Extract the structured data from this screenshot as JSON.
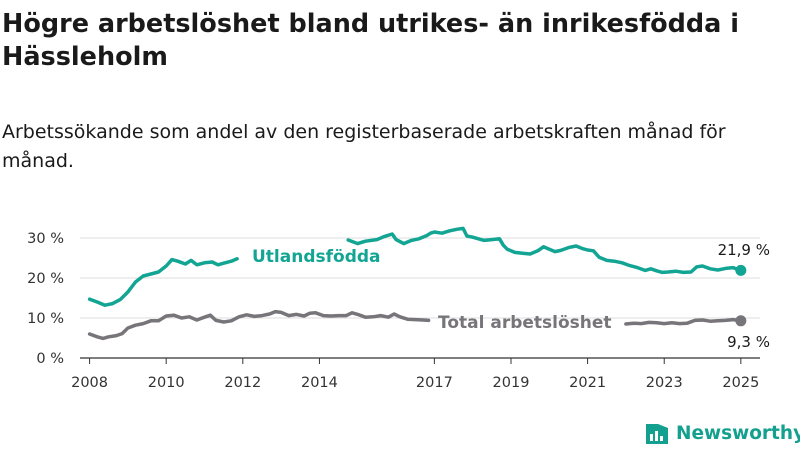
{
  "title": "Högre arbetslöshet bland utrikes- än inrikesfödda i Hässleholm",
  "subtitle": "Arbetssökande som andel av den registerbaserade arbetskraften månad för månad.",
  "brand": {
    "name": "Newsworthy",
    "color": "#14a08f"
  },
  "colors": {
    "grid": "#dddddd",
    "axis": "#333333"
  },
  "chart_data": {
    "type": "line",
    "xlim": [
      2007.75,
      2025.5
    ],
    "ylim": [
      0,
      30
    ],
    "x_ticks": [
      2008,
      2010,
      2012,
      2014,
      2017,
      2019,
      2021,
      2023,
      2025
    ],
    "x_tick_labels": [
      "2008",
      "2010",
      "2012",
      "2014",
      "2017",
      "2019",
      "2021",
      "2023",
      "2025"
    ],
    "y_ticks": [
      0,
      10,
      20,
      30
    ],
    "y_tick_labels": [
      "0 %",
      "10 %",
      "20 %",
      "30 %"
    ],
    "grid": "horizontal",
    "series": [
      {
        "name": "Utlandsfödda",
        "color": "#13a594",
        "end_label": "21,9 %",
        "points": [
          [
            2008.0,
            14.7
          ],
          [
            2008.2,
            14.0
          ],
          [
            2008.4,
            13.2
          ],
          [
            2008.6,
            13.6
          ],
          [
            2008.8,
            14.6
          ],
          [
            2009.0,
            16.5
          ],
          [
            2009.2,
            19.0
          ],
          [
            2009.4,
            20.5
          ],
          [
            2009.6,
            21.0
          ],
          [
            2009.8,
            21.5
          ],
          [
            2010.0,
            23.0
          ],
          [
            2010.15,
            24.6
          ],
          [
            2010.3,
            24.2
          ],
          [
            2010.5,
            23.5
          ],
          [
            2010.65,
            24.4
          ],
          [
            2010.8,
            23.3
          ],
          [
            2011.0,
            23.8
          ],
          [
            2011.2,
            24.0
          ],
          [
            2011.35,
            23.3
          ],
          [
            2011.5,
            23.7
          ],
          [
            2011.7,
            24.2
          ],
          [
            2011.85,
            24.8
          ],
          [
            2014.75,
            29.5
          ],
          [
            2015.0,
            28.6
          ],
          [
            2015.2,
            29.2
          ],
          [
            2015.5,
            29.6
          ],
          [
            2015.7,
            30.4
          ],
          [
            2015.9,
            31.0
          ],
          [
            2016.0,
            29.6
          ],
          [
            2016.2,
            28.6
          ],
          [
            2016.4,
            29.4
          ],
          [
            2016.6,
            29.8
          ],
          [
            2016.8,
            30.6
          ],
          [
            2016.9,
            31.2
          ],
          [
            2017.0,
            31.5
          ],
          [
            2017.2,
            31.2
          ],
          [
            2017.4,
            31.8
          ],
          [
            2017.6,
            32.2
          ],
          [
            2017.75,
            32.4
          ],
          [
            2017.85,
            30.5
          ],
          [
            2018.0,
            30.2
          ],
          [
            2018.15,
            29.8
          ],
          [
            2018.3,
            29.4
          ],
          [
            2018.5,
            29.6
          ],
          [
            2018.7,
            29.8
          ],
          [
            2018.8,
            28.2
          ],
          [
            2018.9,
            27.2
          ],
          [
            2019.1,
            26.4
          ],
          [
            2019.3,
            26.2
          ],
          [
            2019.5,
            26.0
          ],
          [
            2019.7,
            26.8
          ],
          [
            2019.85,
            27.8
          ],
          [
            2020.0,
            27.2
          ],
          [
            2020.15,
            26.6
          ],
          [
            2020.3,
            26.9
          ],
          [
            2020.5,
            27.6
          ],
          [
            2020.7,
            28.0
          ],
          [
            2020.85,
            27.4
          ],
          [
            2021.0,
            27.0
          ],
          [
            2021.15,
            26.8
          ],
          [
            2021.3,
            25.2
          ],
          [
            2021.5,
            24.4
          ],
          [
            2021.7,
            24.2
          ],
          [
            2021.9,
            23.8
          ],
          [
            2022.1,
            23.1
          ],
          [
            2022.3,
            22.6
          ],
          [
            2022.5,
            21.9
          ],
          [
            2022.65,
            22.3
          ],
          [
            2022.8,
            21.8
          ],
          [
            2022.95,
            21.4
          ],
          [
            2023.1,
            21.5
          ],
          [
            2023.3,
            21.7
          ],
          [
            2023.5,
            21.4
          ],
          [
            2023.7,
            21.5
          ],
          [
            2023.85,
            22.8
          ],
          [
            2024.0,
            23.0
          ],
          [
            2024.2,
            22.3
          ],
          [
            2024.4,
            22.0
          ],
          [
            2024.6,
            22.4
          ],
          [
            2024.8,
            22.6
          ],
          [
            2024.9,
            22.2
          ],
          [
            2025.0,
            21.9
          ]
        ]
      },
      {
        "name": "Total arbetslöshet",
        "color": "#77757a",
        "end_label": "9,3 %",
        "points": [
          [
            2008.0,
            6.0
          ],
          [
            2008.2,
            5.3
          ],
          [
            2008.35,
            4.9
          ],
          [
            2008.5,
            5.3
          ],
          [
            2008.7,
            5.6
          ],
          [
            2008.85,
            6.1
          ],
          [
            2009.0,
            7.5
          ],
          [
            2009.2,
            8.2
          ],
          [
            2009.4,
            8.6
          ],
          [
            2009.6,
            9.3
          ],
          [
            2009.8,
            9.3
          ],
          [
            2010.0,
            10.5
          ],
          [
            2010.2,
            10.7
          ],
          [
            2010.4,
            10.0
          ],
          [
            2010.6,
            10.3
          ],
          [
            2010.8,
            9.5
          ],
          [
            2011.0,
            10.2
          ],
          [
            2011.15,
            10.7
          ],
          [
            2011.3,
            9.4
          ],
          [
            2011.5,
            9.0
          ],
          [
            2011.7,
            9.3
          ],
          [
            2011.9,
            10.3
          ],
          [
            2012.1,
            10.8
          ],
          [
            2012.3,
            10.4
          ],
          [
            2012.5,
            10.6
          ],
          [
            2012.7,
            11.0
          ],
          [
            2012.85,
            11.6
          ],
          [
            2013.0,
            11.4
          ],
          [
            2013.2,
            10.6
          ],
          [
            2013.4,
            10.9
          ],
          [
            2013.6,
            10.5
          ],
          [
            2013.75,
            11.2
          ],
          [
            2013.9,
            11.3
          ],
          [
            2014.1,
            10.6
          ],
          [
            2014.3,
            10.5
          ],
          [
            2014.5,
            10.6
          ],
          [
            2014.7,
            10.6
          ],
          [
            2014.85,
            11.3
          ],
          [
            2015.0,
            10.9
          ],
          [
            2015.2,
            10.2
          ],
          [
            2015.4,
            10.3
          ],
          [
            2015.6,
            10.6
          ],
          [
            2015.8,
            10.2
          ],
          [
            2015.95,
            11.0
          ],
          [
            2016.1,
            10.3
          ],
          [
            2016.3,
            9.7
          ],
          [
            2016.5,
            9.6
          ],
          [
            2016.7,
            9.5
          ],
          [
            2016.85,
            9.4
          ],
          [
            2022.0,
            8.5
          ],
          [
            2022.2,
            8.7
          ],
          [
            2022.4,
            8.6
          ],
          [
            2022.6,
            8.9
          ],
          [
            2022.8,
            8.8
          ],
          [
            2023.0,
            8.6
          ],
          [
            2023.2,
            8.8
          ],
          [
            2023.4,
            8.6
          ],
          [
            2023.6,
            8.7
          ],
          [
            2023.8,
            9.4
          ],
          [
            2024.0,
            9.5
          ],
          [
            2024.2,
            9.2
          ],
          [
            2024.4,
            9.3
          ],
          [
            2024.6,
            9.4
          ],
          [
            2024.8,
            9.6
          ],
          [
            2025.0,
            9.3
          ]
        ]
      }
    ]
  }
}
